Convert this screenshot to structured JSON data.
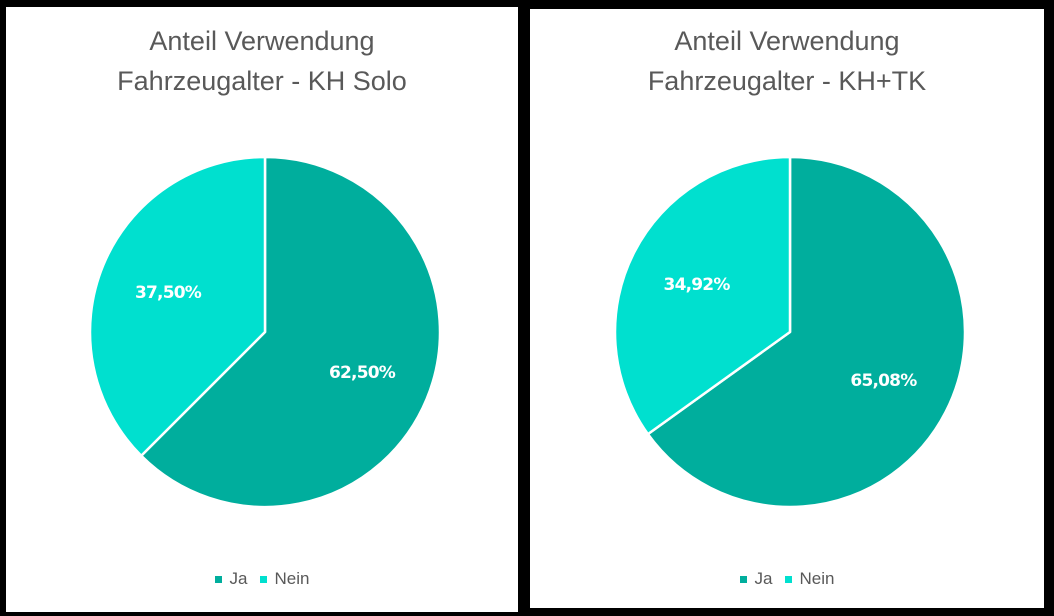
{
  "colors": {
    "ja": "#00ae9d",
    "nein": "#00e0cf",
    "title": "#595959",
    "background": "#ffffff",
    "frame": "#000000"
  },
  "charts": [
    {
      "title_line1": "Anteil Verwendung",
      "title_line2": "Fahrzeugalter - KH Solo",
      "slices": [
        {
          "label": "Ja",
          "value": 62.5,
          "display": "62,50%"
        },
        {
          "label": "Nein",
          "value": 37.5,
          "display": "37,50%"
        }
      ],
      "legend": [
        {
          "label": "Ja"
        },
        {
          "label": "Nein"
        }
      ]
    },
    {
      "title_line1": "Anteil Verwendung",
      "title_line2": "Fahrzeugalter - KH+TK",
      "slices": [
        {
          "label": "Ja",
          "value": 65.08,
          "display": "65,08%"
        },
        {
          "label": "Nein",
          "value": 34.92,
          "display": "34,92%"
        }
      ],
      "legend": [
        {
          "label": "Ja"
        },
        {
          "label": "Nein"
        }
      ]
    }
  ],
  "chart_data": [
    {
      "type": "pie",
      "title": "Anteil Verwendung Fahrzeugalter - KH Solo",
      "categories": [
        "Ja",
        "Nein"
      ],
      "values": [
        62.5,
        37.5
      ],
      "unit": "%",
      "legend_position": "bottom",
      "start_angle": "12 o'clock, clockwise"
    },
    {
      "type": "pie",
      "title": "Anteil Verwendung Fahrzeugalter - KH+TK",
      "categories": [
        "Ja",
        "Nein"
      ],
      "values": [
        65.08,
        34.92
      ],
      "unit": "%",
      "legend_position": "bottom",
      "start_angle": "12 o'clock, clockwise"
    }
  ]
}
